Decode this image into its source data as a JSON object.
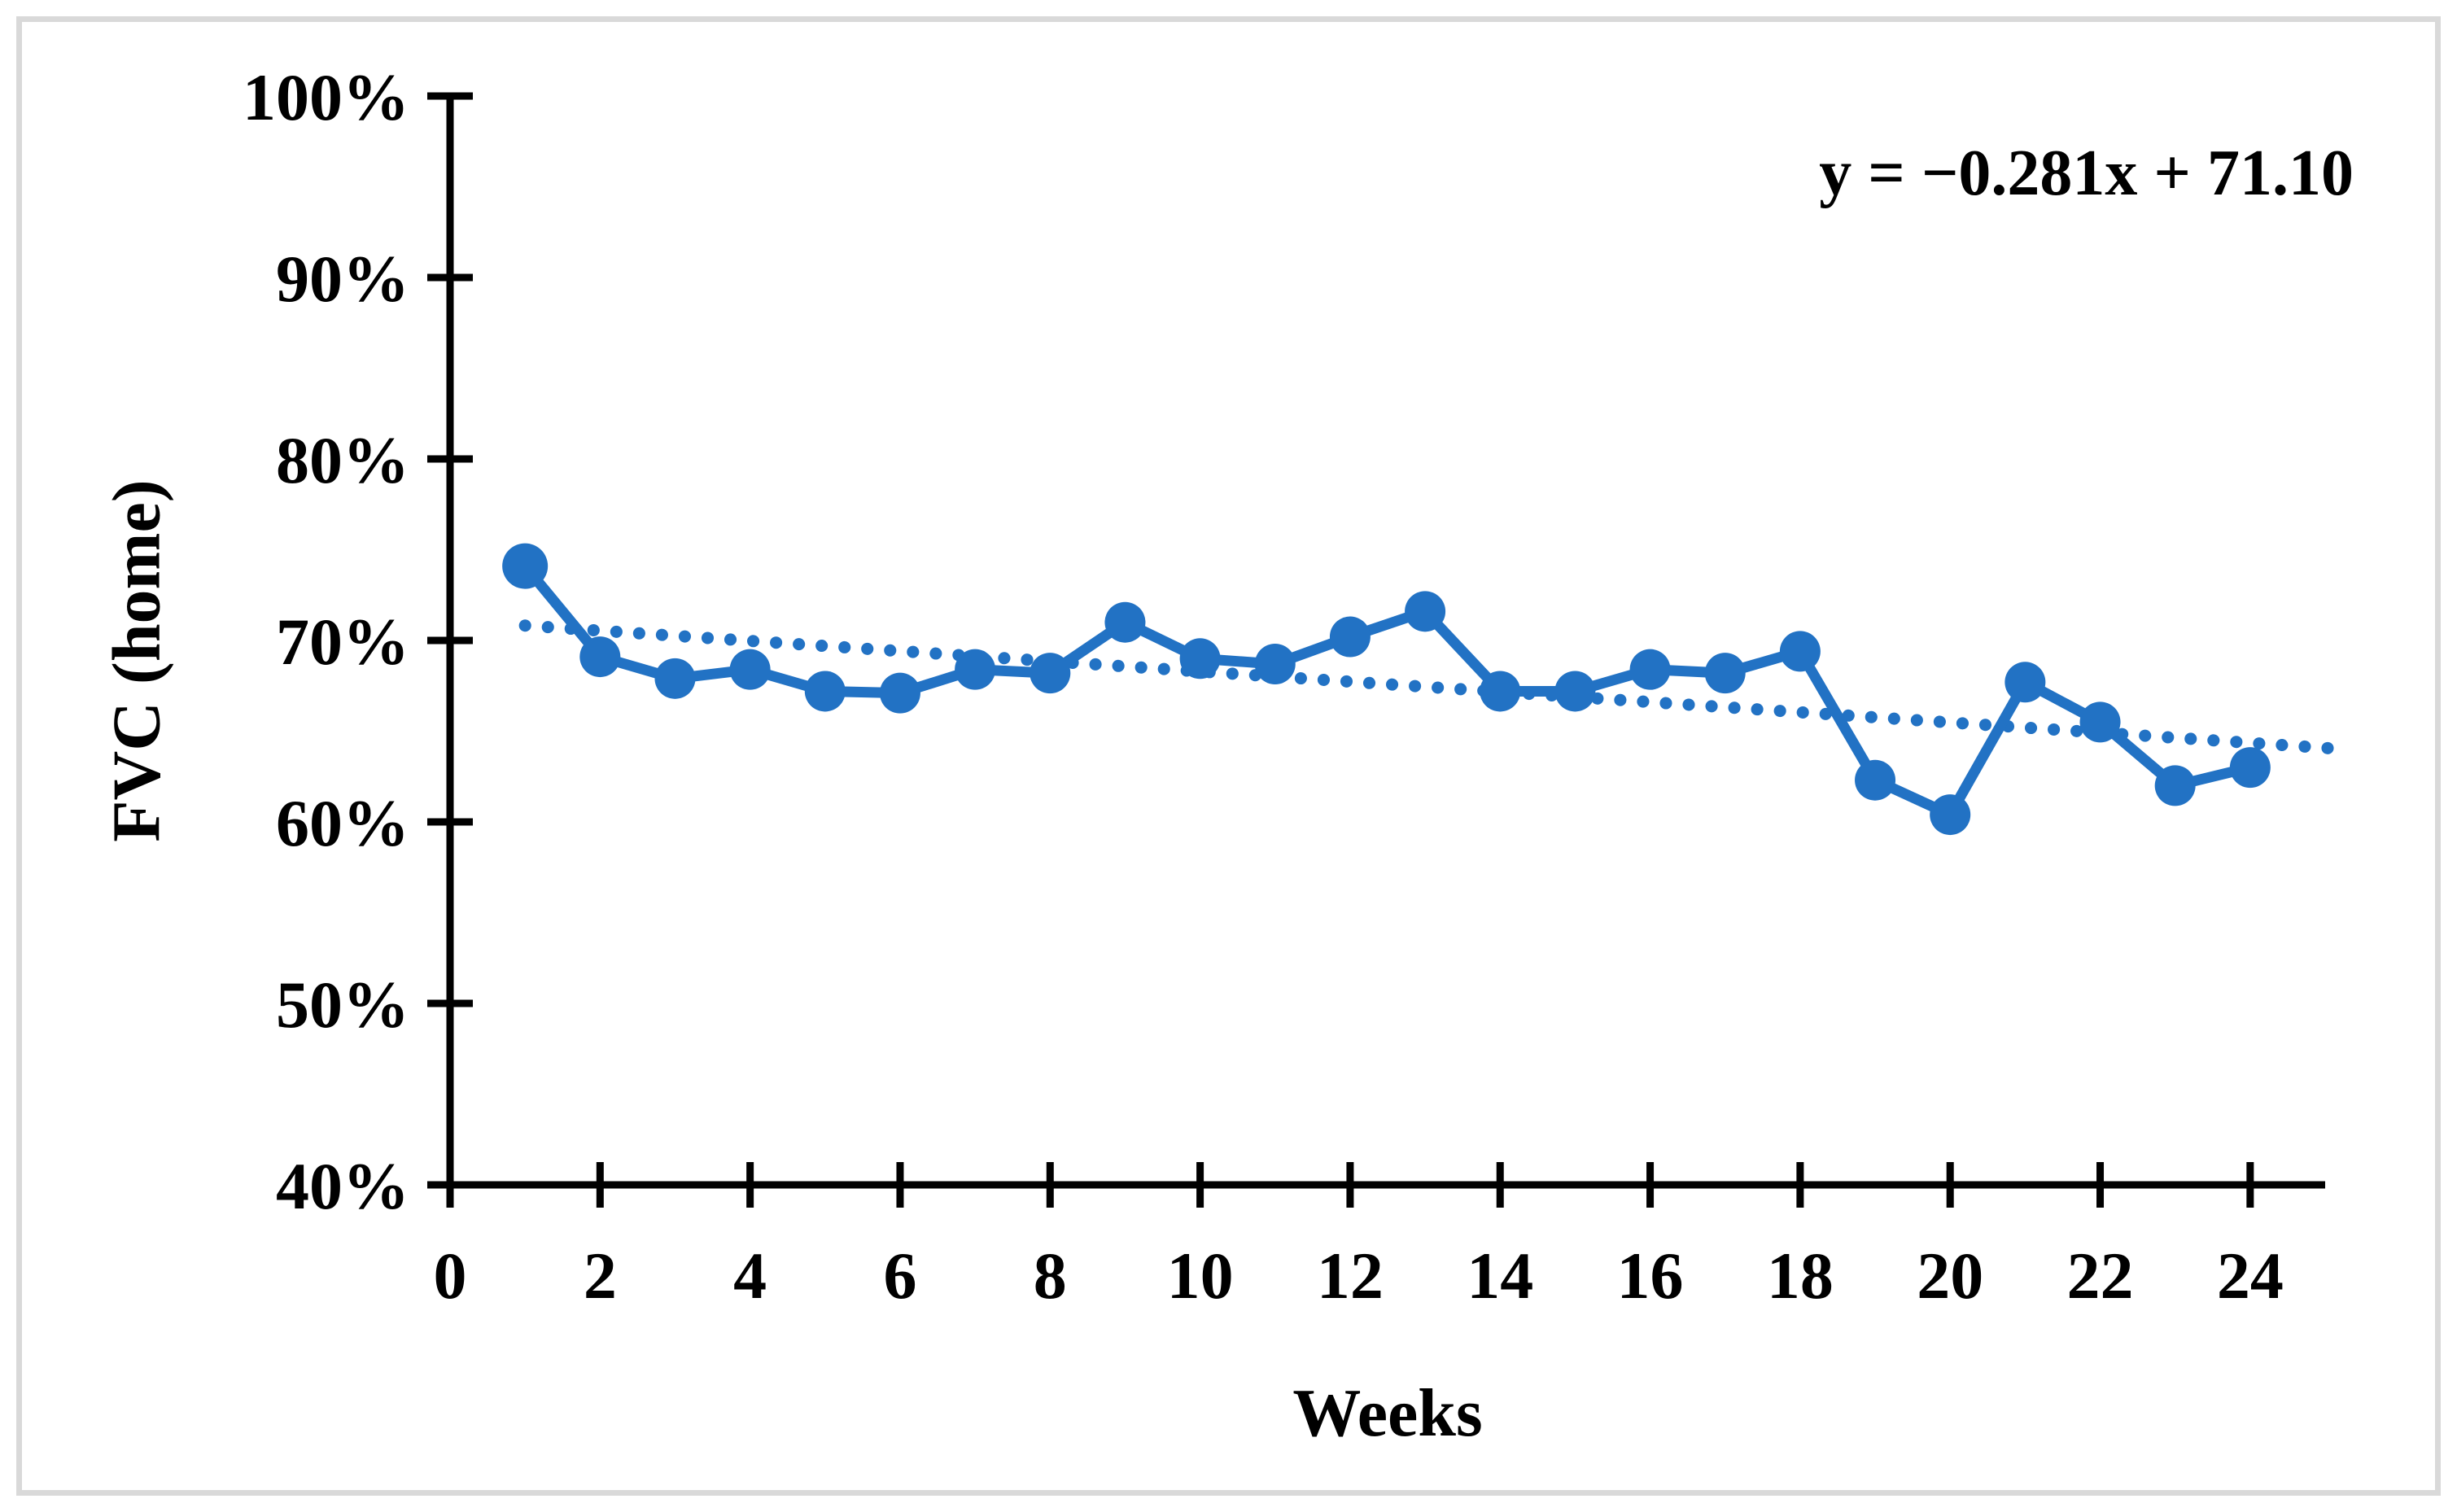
{
  "chart_data": {
    "type": "line",
    "title": "",
    "xlabel": "Weeks",
    "ylabel": "FVC (home)",
    "x": [
      1,
      2,
      3,
      4,
      5,
      6,
      7,
      8,
      9,
      10,
      11,
      12,
      13,
      14,
      15,
      16,
      17,
      18,
      19,
      20,
      21,
      22,
      23,
      24
    ],
    "series": [
      {
        "name": "FVC (home)",
        "values": [
          74.1,
          69.1,
          67.9,
          68.4,
          67.2,
          67.1,
          68.4,
          68.2,
          71.0,
          69.0,
          68.7,
          70.2,
          71.6,
          67.2,
          67.2,
          68.4,
          68.2,
          69.4,
          62.3,
          60.4,
          67.7,
          65.5,
          62.0,
          63.0
        ]
      }
    ],
    "trendline": {
      "equation": "y = −0.281x + 71.10",
      "slope": -0.281,
      "intercept": 71.1,
      "style": "dotted",
      "x_start": 1,
      "x_end": 25.2
    },
    "x_ticks": [
      0,
      2,
      4,
      6,
      8,
      10,
      12,
      14,
      16,
      18,
      20,
      22,
      24
    ],
    "y_ticks": [
      40,
      50,
      60,
      70,
      80,
      90,
      100
    ],
    "y_tick_suffix": "%",
    "xlim": [
      0,
      25
    ],
    "ylim": [
      40,
      100
    ],
    "grid": false,
    "legend": "none"
  },
  "colors": {
    "series": "#2272C4",
    "axis": "#000000",
    "text": "#000000",
    "frame_border": "#D9D9D9",
    "background": "#FFFFFF"
  }
}
